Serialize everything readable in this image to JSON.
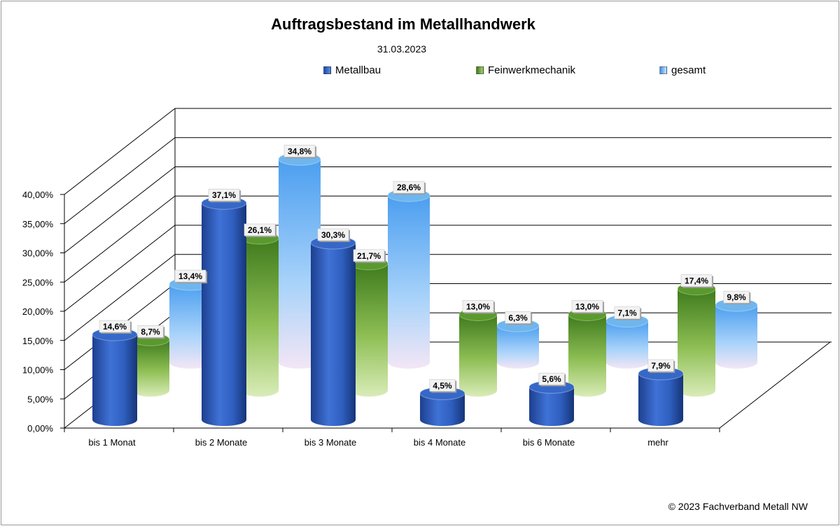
{
  "chart_data": {
    "type": "bar",
    "title": "Auftragsbestand im Metallhandwerk",
    "subtitle": "31.03.2023",
    "categories": [
      "bis 1 Monat",
      "bis 2 Monate",
      "bis 3 Monate",
      "bis 4 Monate",
      "bis 6 Monate",
      "mehr"
    ],
    "series": [
      {
        "name": "Metallbau",
        "color": "#2f5fbf",
        "values": [
          14.6,
          37.1,
          30.3,
          4.5,
          5.6,
          7.9
        ],
        "labels": [
          "14,6%",
          "37,1%",
          "30,3%",
          "4,5%",
          "5,6%",
          "7,9%"
        ]
      },
      {
        "name": "Feinwerkmechanik",
        "color": "#6f9f3a",
        "values": [
          8.7,
          26.1,
          21.7,
          13.0,
          13.0,
          17.4
        ],
        "labels": [
          "8,7%",
          "26,1%",
          "21,7%",
          "13,0%",
          "13,0%",
          "17,4%"
        ]
      },
      {
        "name": "gesamt",
        "color": "#6fb6ee",
        "values": [
          13.4,
          34.8,
          28.6,
          6.3,
          7.1,
          9.8
        ],
        "labels": [
          "13,4%",
          "34,8%",
          "28,6%",
          "6,3%",
          "7,1%",
          "9,8%"
        ]
      }
    ],
    "yticks": [
      "0,00%",
      "5,00%",
      "10,00%",
      "15,00%",
      "20,00%",
      "25,00%",
      "30,00%",
      "35,00%",
      "40,00%"
    ],
    "ylim": [
      0,
      40
    ],
    "grid": true,
    "legend_position": "top",
    "style": "3d-cylinder"
  },
  "footer": {
    "copyright": "© 2023 Fachverband Metall NW"
  }
}
